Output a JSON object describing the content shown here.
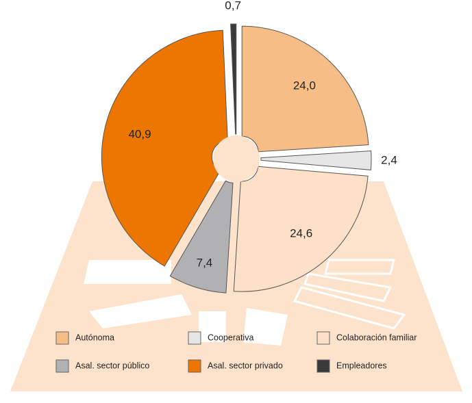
{
  "chart_data": {
    "type": "pie",
    "categories": [
      "Autónoma",
      "Cooperativa",
      "Colaboración familiar",
      "Asal. sector público",
      "Asal. sector privado",
      "Empleadores"
    ],
    "values": [
      24.0,
      2.4,
      24.6,
      7.4,
      40.9,
      0.7
    ],
    "value_labels": [
      "24,0",
      "2,4",
      "24,6",
      "7,4",
      "40,9",
      "0,7"
    ],
    "colors": [
      "#f7bd87",
      "#e6e6e6",
      "#fce0c8",
      "#b1b1b3",
      "#ec7600",
      "#3a3a3a"
    ],
    "legend": "bottom"
  }
}
